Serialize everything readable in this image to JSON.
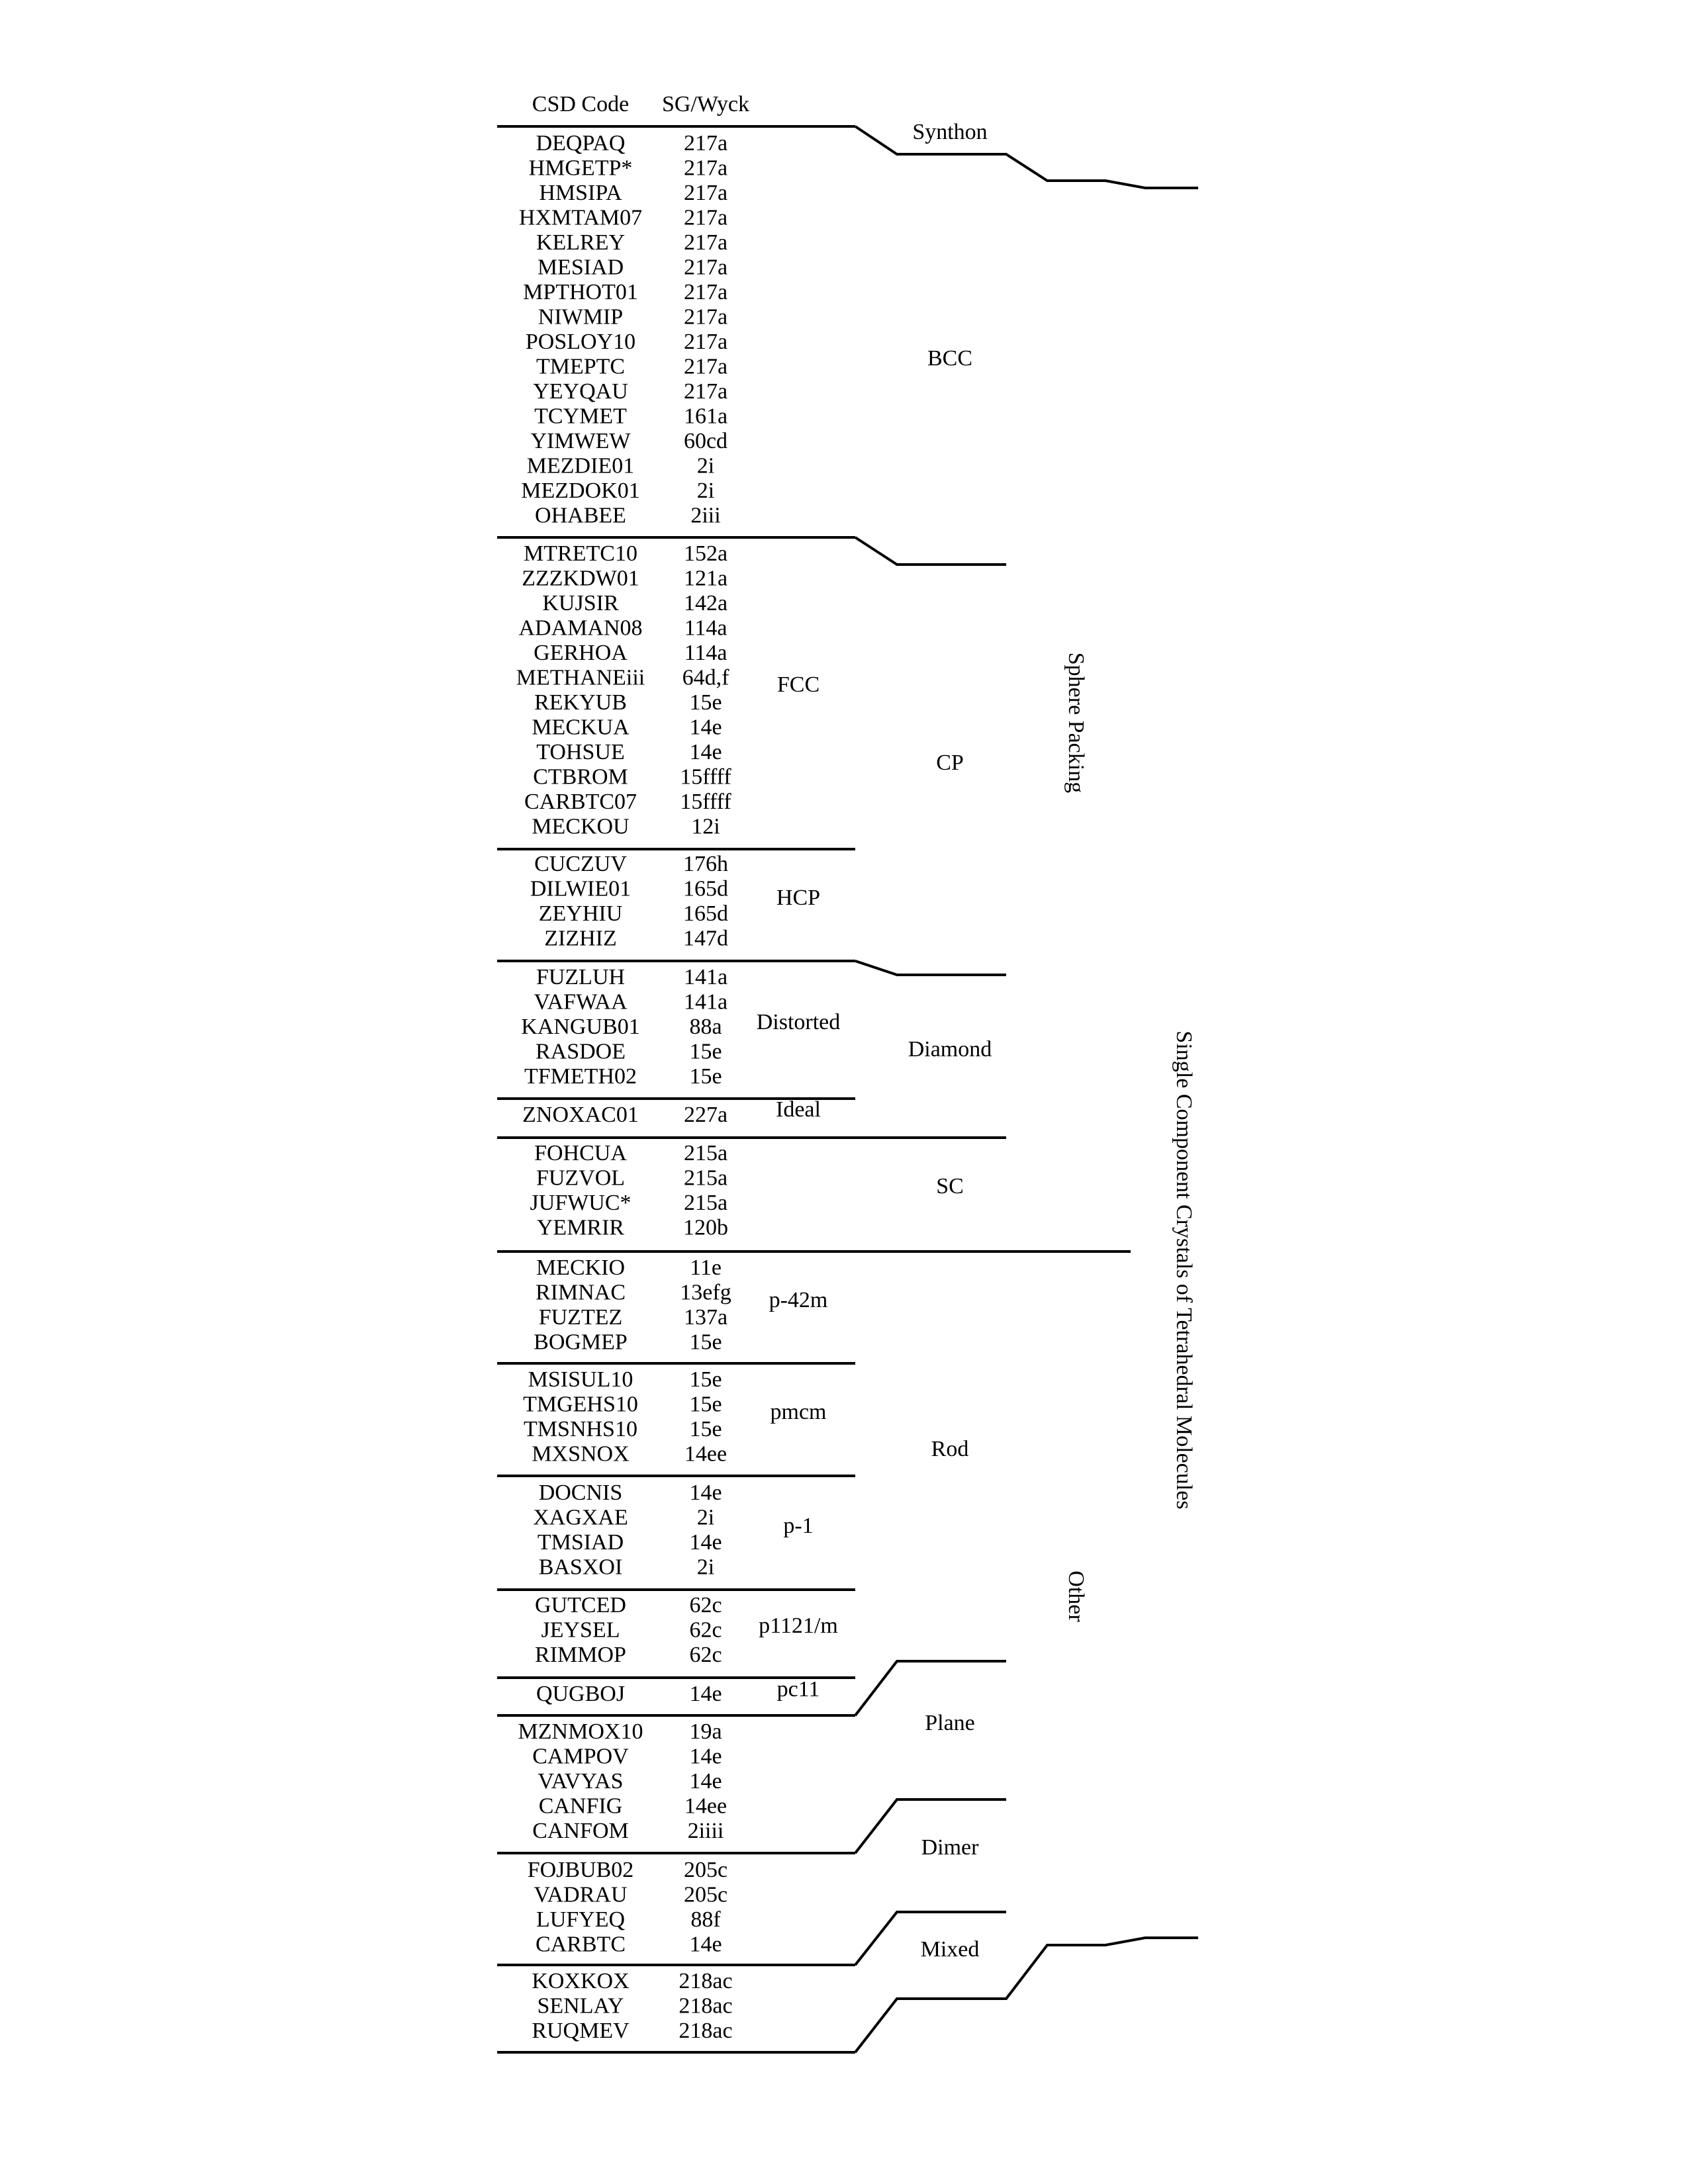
{
  "headers": {
    "code": "CSD Code",
    "sgwyck": "SG/Wyck"
  },
  "rows": [
    {
      "code": "DEQPAQ",
      "sg": "217a"
    },
    {
      "code": "HMGETP*",
      "sg": "217a"
    },
    {
      "code": "HMSIPA",
      "sg": "217a"
    },
    {
      "code": "HXMTAM07",
      "sg": "217a"
    },
    {
      "code": "KELREY",
      "sg": "217a"
    },
    {
      "code": "MESIAD",
      "sg": "217a"
    },
    {
      "code": "MPTHOT01",
      "sg": "217a"
    },
    {
      "code": "NIWMIP",
      "sg": "217a"
    },
    {
      "code": "POSLOY10",
      "sg": "217a"
    },
    {
      "code": "TMEPTC",
      "sg": "217a"
    },
    {
      "code": "YEYQAU",
      "sg": "217a"
    },
    {
      "code": "TCYMET",
      "sg": "161a"
    },
    {
      "code": "YIMWEW",
      "sg": "60cd"
    },
    {
      "code": "MEZDIE01",
      "sg": "2i"
    },
    {
      "code": "MEZDOK01",
      "sg": "2i"
    },
    {
      "code": "OHABEE",
      "sg": "2iii"
    },
    {
      "code": "MTRETC10",
      "sg": "152a"
    },
    {
      "code": "ZZZKDW01",
      "sg": "121a"
    },
    {
      "code": "KUJSIR",
      "sg": "142a"
    },
    {
      "code": "ADAMAN08",
      "sg": "114a"
    },
    {
      "code": "GERHOA",
      "sg": "114a"
    },
    {
      "code": "METHANEiii",
      "sg": "64d,f"
    },
    {
      "code": "REKYUB",
      "sg": "15e"
    },
    {
      "code": "MECKUA",
      "sg": "14e"
    },
    {
      "code": "TOHSUE",
      "sg": "14e"
    },
    {
      "code": "CTBROM",
      "sg": "15ffff"
    },
    {
      "code": "CARBTC07",
      "sg": "15ffff"
    },
    {
      "code": "MECKOU",
      "sg": "12i"
    },
    {
      "code": "CUCZUV",
      "sg": "176h"
    },
    {
      "code": "DILWIE01",
      "sg": "165d"
    },
    {
      "code": "ZEYHIU",
      "sg": "165d"
    },
    {
      "code": "ZIZHIZ",
      "sg": "147d"
    },
    {
      "code": "FUZLUH",
      "sg": "141a"
    },
    {
      "code": "VAFWAA",
      "sg": "141a"
    },
    {
      "code": "KANGUB01",
      "sg": "88a"
    },
    {
      "code": "RASDOE",
      "sg": "15e"
    },
    {
      "code": "TFMETH02",
      "sg": "15e"
    },
    {
      "code": "ZNOXAC01",
      "sg": "227a"
    },
    {
      "code": "FOHCUA",
      "sg": "215a"
    },
    {
      "code": "FUZVOL",
      "sg": "215a"
    },
    {
      "code": "JUFWUC*",
      "sg": "215a"
    },
    {
      "code": "YEMRIR",
      "sg": "120b"
    },
    {
      "code": "MECKIO",
      "sg": "11e"
    },
    {
      "code": "RIMNAC",
      "sg": "13efg"
    },
    {
      "code": "FUZTEZ",
      "sg": "137a"
    },
    {
      "code": "BOGMEP",
      "sg": "15e"
    },
    {
      "code": "MSISUL10",
      "sg": "15e"
    },
    {
      "code": "TMGEHS10",
      "sg": "15e"
    },
    {
      "code": "TMSNHS10",
      "sg": "15e"
    },
    {
      "code": "MXSNOX",
      "sg": "14ee"
    },
    {
      "code": "DOCNIS",
      "sg": "14e"
    },
    {
      "code": "XAGXAE",
      "sg": "2i"
    },
    {
      "code": "TMSIAD",
      "sg": "14e"
    },
    {
      "code": "BASXOI",
      "sg": "2i"
    },
    {
      "code": "GUTCED",
      "sg": "62c"
    },
    {
      "code": "JEYSEL",
      "sg": "62c"
    },
    {
      "code": "RIMMOP",
      "sg": "62c"
    },
    {
      "code": "QUGBOJ",
      "sg": "14e"
    },
    {
      "code": "MZNMOX10",
      "sg": "19a"
    },
    {
      "code": "CAMPOV",
      "sg": "14e"
    },
    {
      "code": "VAVYAS",
      "sg": "14e"
    },
    {
      "code": "CANFIG",
      "sg": "14ee"
    },
    {
      "code": "CANFOM",
      "sg": "2iiii"
    },
    {
      "code": "FOJBUB02",
      "sg": "205c"
    },
    {
      "code": "VADRAU",
      "sg": "205c"
    },
    {
      "code": "LUFYEQ",
      "sg": "88f"
    },
    {
      "code": "CARBTC",
      "sg": "14e"
    },
    {
      "code": "KOXKOX",
      "sg": "218ac"
    },
    {
      "code": "SENLAY",
      "sg": "218ac"
    },
    {
      "code": "RUQMEV",
      "sg": "218ac"
    }
  ],
  "level1_labels": {
    "fcc": "FCC",
    "hcp": "HCP",
    "distorted": "Distorted",
    "ideal": "Ideal",
    "p42m": "p-42m",
    "pmcm": "pmcm",
    "p1": "p-1",
    "p1121m": "p1121/m",
    "pc11": "pc11"
  },
  "level2_labels": {
    "synthon": "Synthon",
    "bcc": "BCC",
    "cp": "CP",
    "diamond": "Diamond",
    "sc": "SC",
    "rod": "Rod",
    "plane": "Plane",
    "dimer": "Dimer",
    "mixed": "Mixed"
  },
  "level3_labels": {
    "sphere_packing": "Sphere Packing",
    "other": "Other"
  },
  "level4_label": "Single Component Crystals of Tetrahedral Molecules"
}
